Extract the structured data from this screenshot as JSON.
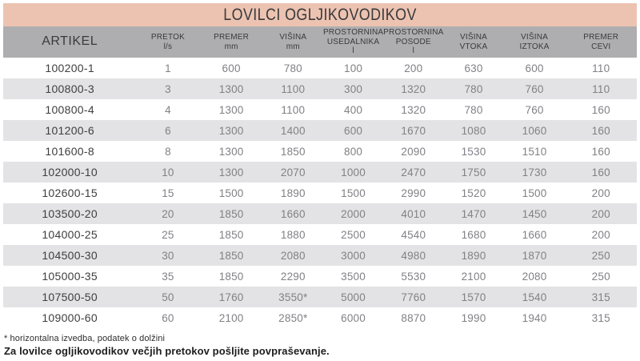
{
  "theme": {
    "title_bg": "#ecc3b1",
    "header_bg": "#aeaeb0",
    "row_bg": "#ffffff",
    "row_alt_bg": "#e3e3e5",
    "text_dark": "#3a3a3c",
    "text_value": "#818186"
  },
  "title": "LOVILCI OGLJIKOVODIKOV",
  "table": {
    "columns": [
      {
        "id": "artikel",
        "lines": [
          "ARTIKEL"
        ],
        "width": "21%"
      },
      {
        "id": "pretok",
        "lines": [
          "PRETOK",
          "l/s"
        ],
        "width": "10%"
      },
      {
        "id": "premer",
        "lines": [
          "PREMER",
          "mm"
        ],
        "width": "10%"
      },
      {
        "id": "visina",
        "lines": [
          "VIŠINA",
          "mm"
        ],
        "width": "9.5%"
      },
      {
        "id": "prostornina-usedalnika",
        "lines": [
          "PROSTORNINA",
          "USEDALNIKA",
          "l"
        ],
        "width": "9.5%"
      },
      {
        "id": "prostornina-posode",
        "lines": [
          "PROSTORNINA",
          "POSODE",
          "l"
        ],
        "width": "9.5%"
      },
      {
        "id": "visina-vtoka",
        "lines": [
          "VIŠINA",
          "VTOKA"
        ],
        "width": "9.5%"
      },
      {
        "id": "visina-iztoka",
        "lines": [
          "VIŠINA",
          "IZTOKA"
        ],
        "width": "9.7%"
      },
      {
        "id": "premer-cevi",
        "lines": [
          "PREMER",
          "CEVI"
        ],
        "width": "11.3%"
      }
    ],
    "rows": [
      [
        "100200-1",
        "1",
        "600",
        "780",
        "100",
        "200",
        "630",
        "600",
        "110"
      ],
      [
        "100800-3",
        "3",
        "1300",
        "1100",
        "300",
        "1320",
        "780",
        "760",
        "110"
      ],
      [
        "100800-4",
        "4",
        "1300",
        "1100",
        "400",
        "1320",
        "780",
        "760",
        "160"
      ],
      [
        "101200-6",
        "6",
        "1300",
        "1400",
        "600",
        "1670",
        "1080",
        "1060",
        "160"
      ],
      [
        "101600-8",
        "8",
        "1300",
        "1850",
        "800",
        "2090",
        "1530",
        "1510",
        "160"
      ],
      [
        "102000-10",
        "10",
        "1300",
        "2070",
        "1000",
        "2470",
        "1750",
        "1730",
        "160"
      ],
      [
        "102600-15",
        "15",
        "1500",
        "1890",
        "1500",
        "2990",
        "1520",
        "1500",
        "200"
      ],
      [
        "103500-20",
        "20",
        "1850",
        "1660",
        "2000",
        "4010",
        "1470",
        "1450",
        "200"
      ],
      [
        "104000-25",
        "25",
        "1850",
        "1880",
        "2500",
        "4540",
        "1680",
        "1660",
        "200"
      ],
      [
        "104500-30",
        "30",
        "1850",
        "2080",
        "3000",
        "4980",
        "1890",
        "1870",
        "250"
      ],
      [
        "105000-35",
        "35",
        "1850",
        "2290",
        "3500",
        "5530",
        "2100",
        "2080",
        "250"
      ],
      [
        "107500-50",
        "50",
        "1760",
        "3550*",
        "5000",
        "7760",
        "1570",
        "1540",
        "315"
      ],
      [
        "109000-60",
        "60",
        "2100",
        "2850*",
        "6000",
        "8870",
        "1990",
        "1940",
        "315"
      ]
    ]
  },
  "footnotes": {
    "note1": "* horizontalna izvedba, podatek o dolžini",
    "note2": "Za lovilce ogljikovodikov večjih pretokov pošljite povpraševanje."
  }
}
